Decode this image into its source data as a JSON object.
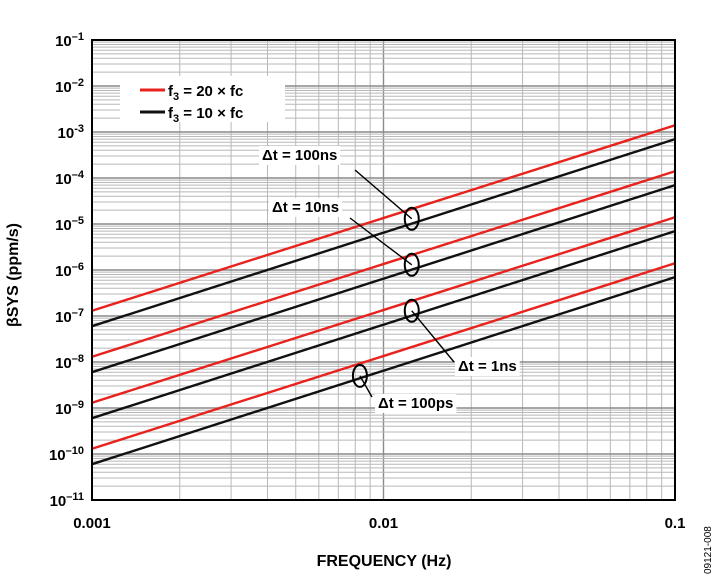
{
  "chart_data": {
    "type": "line",
    "xlabel": "FREQUENCY (Hz)",
    "ylabel": "βSYS (ppm/s)",
    "x_scale": "log",
    "y_scale": "log",
    "xlim": [
      0.001,
      0.1
    ],
    "ylim": [
      1e-11,
      0.1
    ],
    "x_ticks": [
      {
        "value": 0.001,
        "label": "0.001"
      },
      {
        "value": 0.01,
        "label": "0.01"
      },
      {
        "value": 0.1,
        "label": "0.1"
      }
    ],
    "y_ticks": [
      {
        "exp": -1,
        "label_base": "10",
        "label_exp": "–1"
      },
      {
        "exp": -2,
        "label_base": "10",
        "label_exp": "–2"
      },
      {
        "exp": -3,
        "label_base": "10",
        "label_exp": "-3"
      },
      {
        "exp": -4,
        "label_base": "10",
        "label_exp": "–4"
      },
      {
        "exp": -5,
        "label_base": "10",
        "label_exp": "–5"
      },
      {
        "exp": -6,
        "label_base": "10",
        "label_exp": "–6"
      },
      {
        "exp": -7,
        "label_base": "10",
        "label_exp": "–7"
      },
      {
        "exp": -8,
        "label_base": "10",
        "label_exp": "–8"
      },
      {
        "exp": -9,
        "label_base": "10",
        "label_exp": "–9"
      },
      {
        "exp": -10,
        "label_base": "10",
        "label_exp": "–10"
      },
      {
        "exp": -11,
        "label_base": "10",
        "label_exp": "–11"
      }
    ],
    "grid": true,
    "legend": {
      "placement": "top-left",
      "entries": [
        {
          "text": "f3 = 20 × fc",
          "color": "#e8231e"
        },
        {
          "text": "f3 = 10 × fc",
          "color": "#111111"
        }
      ]
    },
    "series": [
      {
        "group": "Δt = 100ns",
        "legend": "f3 = 20 × fc",
        "color": "#e8231e",
        "x": [
          0.001,
          0.1
        ],
        "y": [
          1.3e-07,
          0.0014
        ]
      },
      {
        "group": "Δt = 100ns",
        "legend": "f3 = 10 × fc",
        "color": "#111111",
        "x": [
          0.001,
          0.1
        ],
        "y": [
          6e-08,
          0.0007
        ]
      },
      {
        "group": "Δt = 10ns",
        "legend": "f3 = 20 × fc",
        "color": "#e8231e",
        "x": [
          0.001,
          0.1
        ],
        "y": [
          1.3e-08,
          0.00014
        ]
      },
      {
        "group": "Δt = 10ns",
        "legend": "f3 = 10 × fc",
        "color": "#111111",
        "x": [
          0.001,
          0.1
        ],
        "y": [
          6e-09,
          7e-05
        ]
      },
      {
        "group": "Δt = 1ns",
        "legend": "f3 = 20 × fc",
        "color": "#e8231e",
        "x": [
          0.001,
          0.1
        ],
        "y": [
          1.3e-09,
          1.4e-05
        ]
      },
      {
        "group": "Δt = 1ns",
        "legend": "f3 = 10 × fc",
        "color": "#111111",
        "x": [
          0.001,
          0.1
        ],
        "y": [
          6e-10,
          7e-06
        ]
      },
      {
        "group": "Δt = 100ps",
        "legend": "f3 = 20 × fc",
        "color": "#e8231e",
        "x": [
          0.001,
          0.1
        ],
        "y": [
          1.3e-10,
          1.4e-06
        ]
      },
      {
        "group": "Δt = 100ps",
        "legend": "f3 = 10 × fc",
        "color": "#111111",
        "x": [
          0.001,
          0.1
        ],
        "y": [
          6e-11,
          7e-07
        ]
      }
    ],
    "annotations": [
      {
        "text": "Δt = 100ns",
        "target_x": 0.0125,
        "target_y": 1.3e-05
      },
      {
        "text": "Δt = 10ns",
        "target_x": 0.0125,
        "target_y": 1.3e-06
      },
      {
        "text": "Δt = 1ns",
        "target_x": 0.0125,
        "target_y": 1.3e-07
      },
      {
        "text": "Δt = 100ps",
        "target_x": 0.0083,
        "target_y": 5e-09
      }
    ]
  },
  "figure_code": "09121-008"
}
